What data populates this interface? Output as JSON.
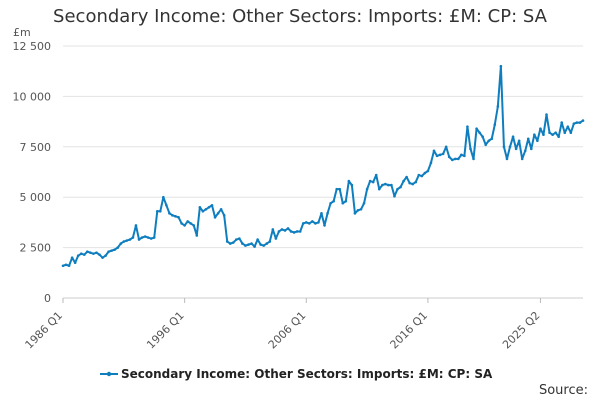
{
  "chart_data": {
    "type": "line",
    "title": "Secondary Income: Other Sectors: Imports: £M: CP: SA",
    "ylabel": "£m",
    "xlabel": "",
    "ylim": [
      0,
      12500
    ],
    "y_ticks": [
      0,
      2500,
      5000,
      7500,
      10000,
      12500
    ],
    "y_tick_labels": [
      "0",
      "2 500",
      "5 000",
      "7 500",
      "10 000",
      "12 500"
    ],
    "x_ticks": [
      "1986 Q1",
      "1996 Q1",
      "2006 Q1",
      "2016 Q1",
      "2025 Q2"
    ],
    "grid": true,
    "legend_position": "bottom",
    "source": "Source:",
    "color": "#0f7ebf",
    "series": [
      {
        "name": "Secondary Income: Other Sectors: Imports: £M: CP: SA",
        "x_start": "1986 Q1",
        "frequency": "quarterly",
        "values": [
          1600,
          1650,
          1600,
          2000,
          1750,
          2100,
          2200,
          2150,
          2300,
          2250,
          2200,
          2250,
          2150,
          2000,
          2100,
          2300,
          2350,
          2400,
          2500,
          2700,
          2800,
          2850,
          2900,
          3000,
          3600,
          2900,
          3000,
          3050,
          3000,
          2950,
          3000,
          4300,
          4300,
          5000,
          4600,
          4200,
          4100,
          4050,
          4000,
          3700,
          3600,
          3800,
          3700,
          3600,
          3100,
          4500,
          4300,
          4400,
          4500,
          4600,
          4000,
          4200,
          4400,
          4100,
          2800,
          2700,
          2750,
          2900,
          2950,
          2700,
          2600,
          2650,
          2700,
          2550,
          2900,
          2650,
          2600,
          2700,
          2800,
          3400,
          2950,
          3300,
          3400,
          3350,
          3450,
          3300,
          3250,
          3300,
          3300,
          3700,
          3750,
          3700,
          3800,
          3700,
          3750,
          4200,
          3600,
          4200,
          4700,
          4800,
          5400,
          5400,
          4700,
          4800,
          5800,
          5600,
          4200,
          4350,
          4400,
          4700,
          5400,
          5800,
          5750,
          6100,
          5400,
          5600,
          5650,
          5600,
          5600,
          5050,
          5400,
          5500,
          5800,
          6000,
          5700,
          5650,
          5750,
          6100,
          6050,
          6200,
          6300,
          6700,
          7300,
          7050,
          7100,
          7150,
          7500,
          7000,
          6850,
          6900,
          6900,
          7100,
          7050,
          8500,
          7400,
          6900,
          8400,
          8200,
          8000,
          7600,
          7800,
          7900,
          8600,
          9500,
          11500,
          7500,
          6900,
          7500,
          8000,
          7400,
          7800,
          6900,
          7300,
          7900,
          7400,
          8100,
          7800,
          8400,
          8100,
          9100,
          8200,
          8100,
          8200,
          8000,
          8700,
          8200,
          8500,
          8200,
          8650,
          8700,
          8700,
          8800
        ]
      }
    ]
  }
}
